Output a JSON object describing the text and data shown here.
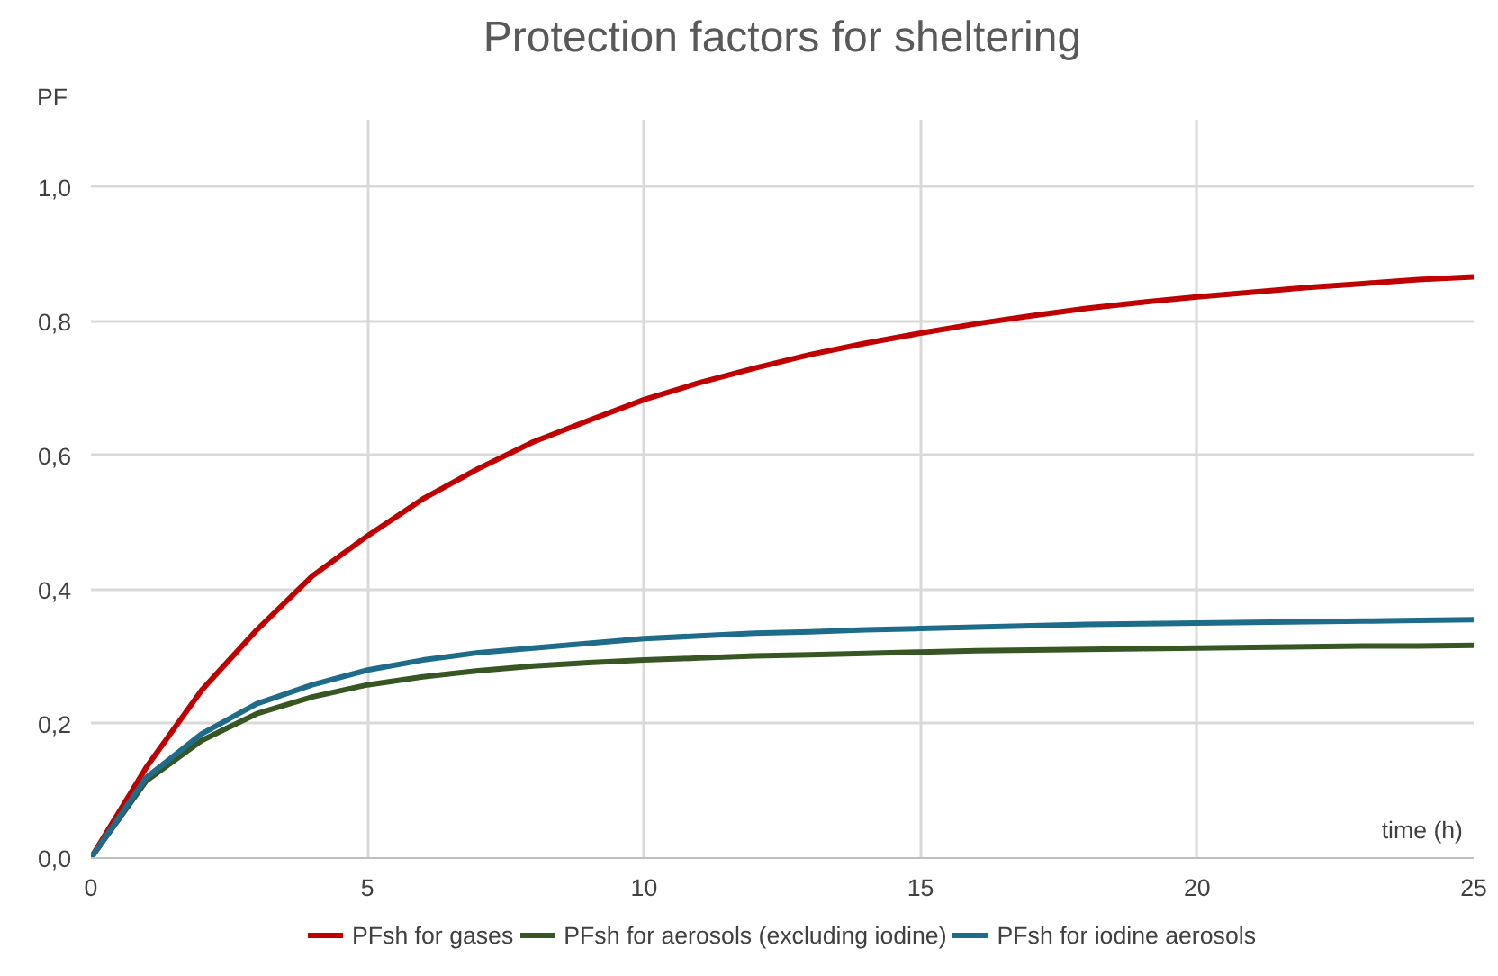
{
  "chart_data": {
    "type": "line",
    "title": "Protection factors for sheltering",
    "xlabel": "time (h)",
    "ylabel": "PF",
    "x": [
      0,
      1,
      2,
      3,
      4,
      5,
      6,
      7,
      8,
      9,
      10,
      11,
      12,
      13,
      14,
      15,
      16,
      17,
      18,
      19,
      20,
      21,
      22,
      23,
      24,
      25
    ],
    "series": [
      {
        "name": "PFsh for gases",
        "color": "#c00000",
        "values": [
          0,
          0.135,
          0.25,
          0.34,
          0.42,
          0.48,
          0.535,
          0.58,
          0.62,
          0.652,
          0.683,
          0.708,
          0.73,
          0.75,
          0.767,
          0.782,
          0.796,
          0.808,
          0.819,
          0.828,
          0.836,
          0.843,
          0.85,
          0.856,
          0.862,
          0.866
        ]
      },
      {
        "name": "PFsh for aerosols (excluding iodine)",
        "color": "#375623",
        "values": [
          0,
          0.115,
          0.175,
          0.215,
          0.24,
          0.258,
          0.27,
          0.279,
          0.286,
          0.291,
          0.295,
          0.298,
          0.301,
          0.303,
          0.305,
          0.307,
          0.309,
          0.31,
          0.311,
          0.312,
          0.313,
          0.314,
          0.315,
          0.316,
          0.316,
          0.317
        ]
      },
      {
        "name": "PFsh for iodine aerosols",
        "color": "#1f6b8a",
        "values": [
          0,
          0.12,
          0.185,
          0.23,
          0.258,
          0.28,
          0.295,
          0.306,
          0.313,
          0.32,
          0.327,
          0.331,
          0.335,
          0.337,
          0.34,
          0.342,
          0.344,
          0.346,
          0.348,
          0.349,
          0.35,
          0.351,
          0.352,
          0.353,
          0.354,
          0.355
        ]
      }
    ],
    "xlim": [
      0,
      25
    ],
    "ylim": [
      0,
      1.1
    ],
    "xticks": [
      0,
      5,
      10,
      15,
      20,
      25
    ],
    "yticks": [
      {
        "value": 0,
        "label": "0,0"
      },
      {
        "value": 0.2,
        "label": "0,2"
      },
      {
        "value": 0.4,
        "label": "0,4"
      },
      {
        "value": 0.6,
        "label": "0,6"
      },
      {
        "value": 0.8,
        "label": "0,8"
      },
      {
        "value": 1.0,
        "label": "1,0"
      }
    ],
    "grid": true,
    "legend": "bottom",
    "marker": "none",
    "line_style": "solid"
  }
}
